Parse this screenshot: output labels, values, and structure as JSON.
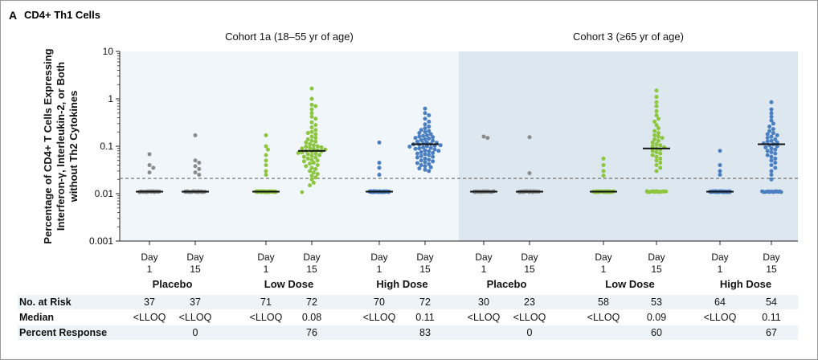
{
  "panel": {
    "letter": "A",
    "title": "CD4+ Th1 Cells"
  },
  "chart_data": {
    "type": "scatter",
    "ylabel": "Percentage of CD4+ T Cells Expressing Interferon-γ, Interleukin-2, or Both without Th2 Cytokines",
    "ylabel_lines": [
      "Percentage of CD4+ T Cells Expressing",
      "Interferon-γ, Interleukin-2, or Both",
      "without Th2 Cytokines"
    ],
    "yscale": "log",
    "ylim": [
      0.001,
      10
    ],
    "yticks": [
      {
        "value": 10,
        "label": "10"
      },
      {
        "value": 1,
        "label": "1"
      },
      {
        "value": 0.1,
        "label": "0.1"
      },
      {
        "value": 0.01,
        "label": "0.01"
      },
      {
        "value": 0.001,
        "label": "0.001"
      }
    ],
    "reference_line": 0.021,
    "cohorts": [
      {
        "title": "Cohort 1a (18–55 yr of age)",
        "shaded": false
      },
      {
        "title": "Cohort 3 (≥65 yr of age)",
        "shaded": true
      }
    ],
    "groups": [
      {
        "cohort": 0,
        "name": "Placebo",
        "color": "#8a8a8a",
        "days": [
          {
            "line1": "Day",
            "line2": "1",
            "median": 0.011,
            "n_lloq": 34,
            "points": [
              0.068,
              0.04,
              0.035,
              0.028
            ]
          },
          {
            "line1": "Day",
            "line2": "15",
            "median": 0.011,
            "n_lloq": 30,
            "points": [
              0.17,
              0.05,
              0.045,
              0.038,
              0.033,
              0.028,
              0.025
            ]
          }
        ]
      },
      {
        "cohort": 0,
        "name": "Low Dose",
        "color": "#8cc63f",
        "days": [
          {
            "line1": "Day",
            "line2": "1",
            "median": 0.011,
            "n_lloq": 63,
            "points": [
              0.17,
              0.1,
              0.085,
              0.065,
              0.05,
              0.04,
              0.03,
              0.025
            ]
          },
          {
            "line1": "Day",
            "line2": "15",
            "median": 0.08,
            "n_lloq": 1,
            "points": [
              1.65,
              1.0,
              0.75,
              0.7,
              0.6,
              0.5,
              0.42,
              0.38,
              0.32,
              0.28,
              0.25,
              0.22,
              0.2,
              0.19,
              0.18,
              0.16,
              0.15,
              0.14,
              0.13,
              0.125,
              0.12,
              0.11,
              0.105,
              0.1,
              0.098,
              0.095,
              0.092,
              0.09,
              0.088,
              0.085,
              0.082,
              0.08,
              0.078,
              0.076,
              0.074,
              0.072,
              0.07,
              0.068,
              0.065,
              0.063,
              0.06,
              0.058,
              0.055,
              0.052,
              0.05,
              0.048,
              0.045,
              0.043,
              0.04,
              0.038,
              0.035,
              0.033,
              0.03,
              0.028,
              0.026,
              0.024,
              0.022,
              0.02,
              0.017,
              0.015
            ]
          }
        ]
      },
      {
        "cohort": 0,
        "name": "High Dose",
        "color": "#4a7fc1",
        "days": [
          {
            "line1": "Day",
            "line2": "1",
            "median": 0.011,
            "n_lloq": 66,
            "points": [
              0.12,
              0.045,
              0.035,
              0.025
            ]
          },
          {
            "line1": "Day",
            "line2": "15",
            "median": 0.11,
            "n_lloq": 0,
            "points": [
              0.62,
              0.5,
              0.45,
              0.38,
              0.33,
              0.29,
              0.26,
              0.24,
              0.22,
              0.21,
              0.2,
              0.19,
              0.18,
              0.17,
              0.165,
              0.16,
              0.155,
              0.15,
              0.145,
              0.14,
              0.135,
              0.13,
              0.125,
              0.12,
              0.118,
              0.115,
              0.112,
              0.11,
              0.108,
              0.105,
              0.102,
              0.1,
              0.098,
              0.095,
              0.092,
              0.09,
              0.088,
              0.085,
              0.082,
              0.08,
              0.078,
              0.075,
              0.072,
              0.07,
              0.068,
              0.065,
              0.062,
              0.06,
              0.058,
              0.055,
              0.052,
              0.05,
              0.048,
              0.046,
              0.044,
              0.042,
              0.04,
              0.038,
              0.036,
              0.034,
              0.032,
              0.03
            ]
          }
        ]
      },
      {
        "cohort": 1,
        "name": "Placebo",
        "color": "#8a8a8a",
        "days": [
          {
            "line1": "Day",
            "line2": "1",
            "median": 0.011,
            "n_lloq": 28,
            "points": [
              0.16,
              0.15
            ]
          },
          {
            "line1": "Day",
            "line2": "15",
            "median": 0.011,
            "n_lloq": 21,
            "points": [
              0.155,
              0.027
            ]
          }
        ]
      },
      {
        "cohort": 1,
        "name": "Low Dose",
        "color": "#8cc63f",
        "days": [
          {
            "line1": "Day",
            "line2": "1",
            "median": 0.011,
            "n_lloq": 54,
            "points": [
              0.055,
              0.04,
              0.03,
              0.024
            ]
          },
          {
            "line1": "Day",
            "line2": "15",
            "median": 0.09,
            "n_lloq": 18,
            "points": [
              1.5,
              1.1,
              0.85,
              0.7,
              0.55,
              0.45,
              0.38,
              0.33,
              0.28,
              0.24,
              0.21,
              0.19,
              0.17,
              0.16,
              0.15,
              0.14,
              0.13,
              0.12,
              0.11,
              0.105,
              0.1,
              0.095,
              0.09,
              0.085,
              0.08,
              0.075,
              0.07,
              0.065,
              0.06,
              0.055,
              0.05,
              0.045,
              0.04,
              0.035,
              0.03
            ]
          }
        ]
      },
      {
        "cohort": 1,
        "name": "High Dose",
        "color": "#4a7fc1",
        "days": [
          {
            "line1": "Day",
            "line2": "1",
            "median": 0.011,
            "n_lloq": 60,
            "points": [
              0.08,
              0.04,
              0.03,
              0.025
            ]
          },
          {
            "line1": "Day",
            "line2": "15",
            "median": 0.11,
            "n_lloq": 16,
            "points": [
              0.85,
              0.6,
              0.5,
              0.42,
              0.35,
              0.3,
              0.26,
              0.23,
              0.21,
              0.19,
              0.18,
              0.17,
              0.16,
              0.15,
              0.14,
              0.13,
              0.125,
              0.12,
              0.115,
              0.11,
              0.105,
              0.1,
              0.095,
              0.09,
              0.085,
              0.08,
              0.075,
              0.07,
              0.065,
              0.06,
              0.055,
              0.05,
              0.045,
              0.04,
              0.035,
              0.03,
              0.025,
              0.02
            ]
          }
        ]
      }
    ],
    "table": {
      "rows": [
        {
          "label": "No. at Risk",
          "values": [
            "37",
            "37",
            "71",
            "72",
            "70",
            "72",
            "30",
            "23",
            "58",
            "53",
            "64",
            "54"
          ]
        },
        {
          "label": "Median",
          "values": [
            "<LLOQ",
            "<LLOQ",
            "<LLOQ",
            "0.08",
            "<LLOQ",
            "0.11",
            "<LLOQ",
            "<LLOQ",
            "<LLOQ",
            "0.09",
            "<LLOQ",
            "0.11"
          ]
        },
        {
          "label": "Percent Response",
          "values": [
            "",
            "0",
            "",
            "76",
            "",
            "83",
            "",
            "0",
            "",
            "60",
            "",
            "67"
          ]
        }
      ]
    }
  }
}
